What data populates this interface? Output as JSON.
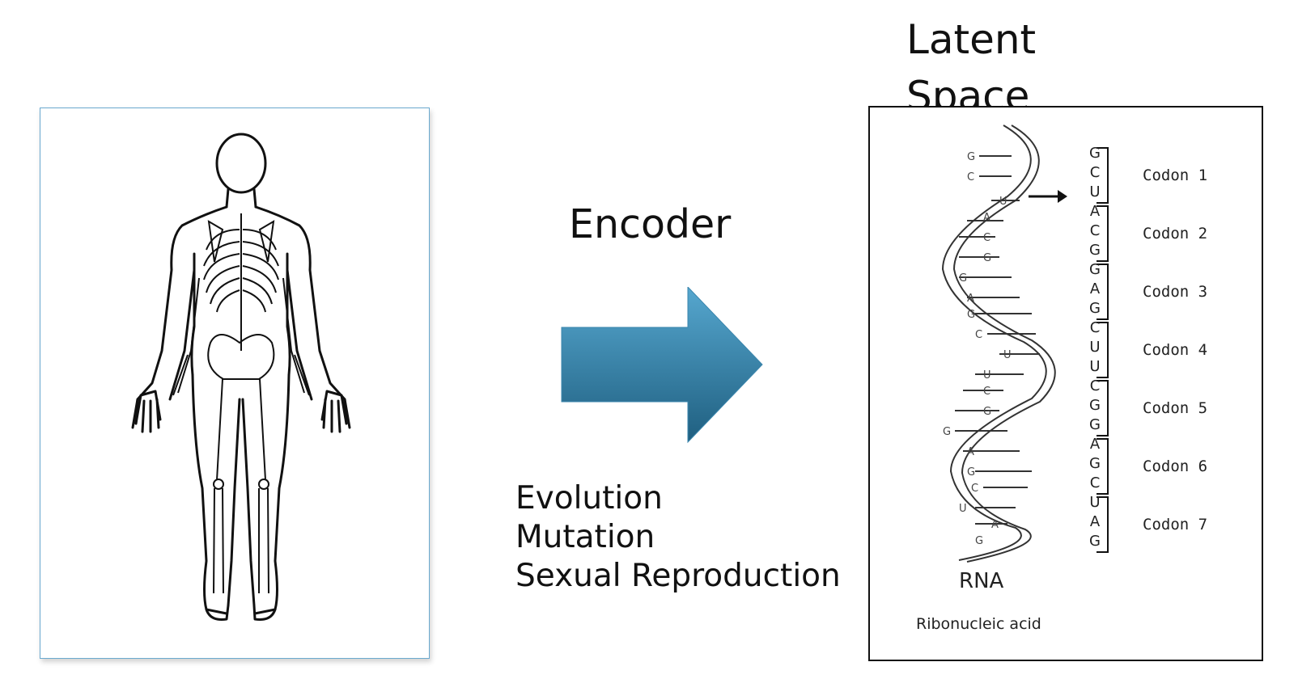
{
  "title": "Latent Space",
  "encoder": {
    "label": "Encoder"
  },
  "processes": [
    "Evolution",
    "Mutation",
    "Sexual Reproduction"
  ],
  "rna": {
    "caption": "RNA",
    "subcaption": "Ribonucleic acid",
    "sequence": [
      "G",
      "C",
      "U",
      "A",
      "C",
      "G",
      "G",
      "A",
      "G",
      "C",
      "U",
      "U",
      "C",
      "G",
      "G",
      "A",
      "G",
      "C",
      "U",
      "A",
      "G"
    ],
    "codons": [
      "Codon 1",
      "Codon 2",
      "Codon 3",
      "Codon 4",
      "Codon 5",
      "Codon 6",
      "Codon 7"
    ]
  },
  "colors": {
    "arrow_top": "#56a7cf",
    "arrow_bottom": "#1f5f80",
    "panel_border": "#6aa9cf"
  },
  "icons": {
    "human_figure": "human-skeleton-icon",
    "rna_helix": "rna-helix-icon",
    "pointer": "arrow-right-icon"
  }
}
